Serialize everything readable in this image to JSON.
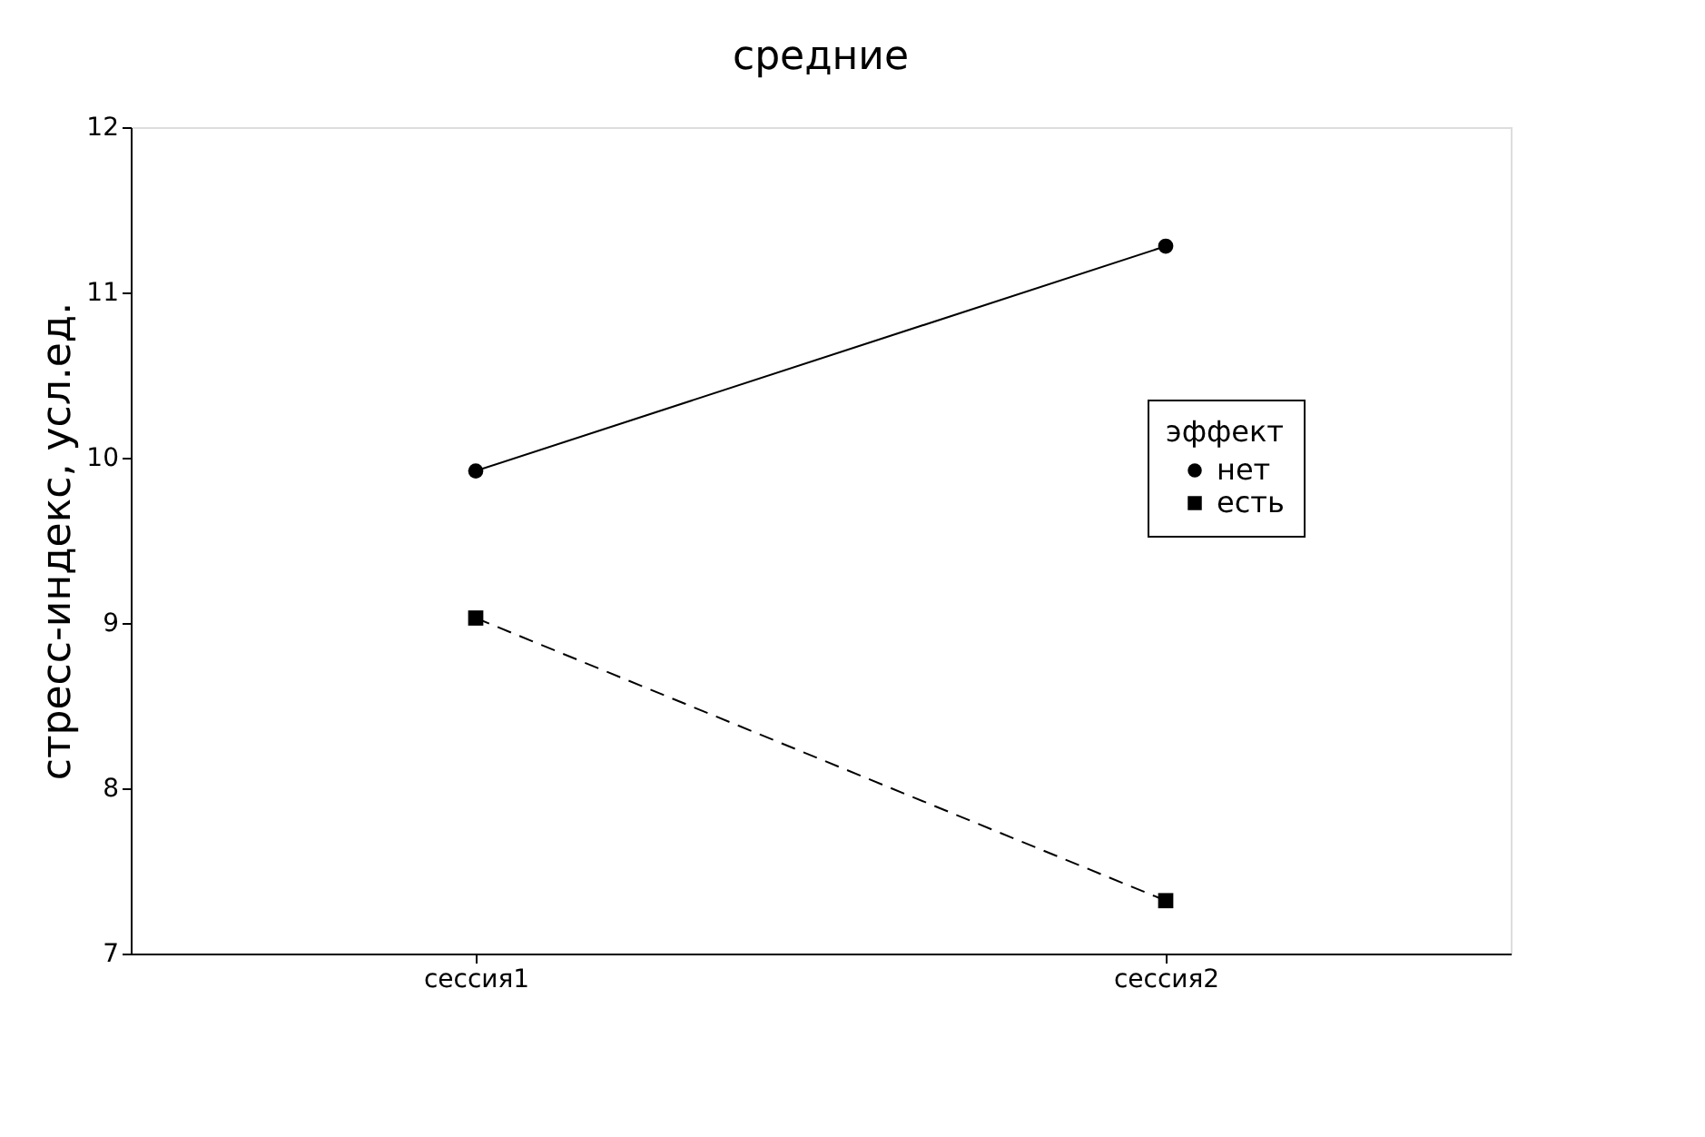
{
  "chart_data": {
    "type": "line",
    "title": "средние",
    "ylabel": "стресс-индекс, усл.ед.",
    "categories": [
      "сессия1",
      "сессия2"
    ],
    "series": [
      {
        "name": "нет",
        "color": "#000000",
        "values": [
          9.92,
          11.28
        ],
        "marker": "circle",
        "line_style": "solid"
      },
      {
        "name": "есть",
        "color": "#000000",
        "values": [
          9.03,
          7.32
        ],
        "marker": "square",
        "line_style": "dashed"
      }
    ],
    "ylim": [
      7,
      12
    ],
    "yticks": [
      7,
      8,
      9,
      10,
      11,
      12
    ],
    "grid": false,
    "legend": "right",
    "legend_title": "эффект"
  }
}
